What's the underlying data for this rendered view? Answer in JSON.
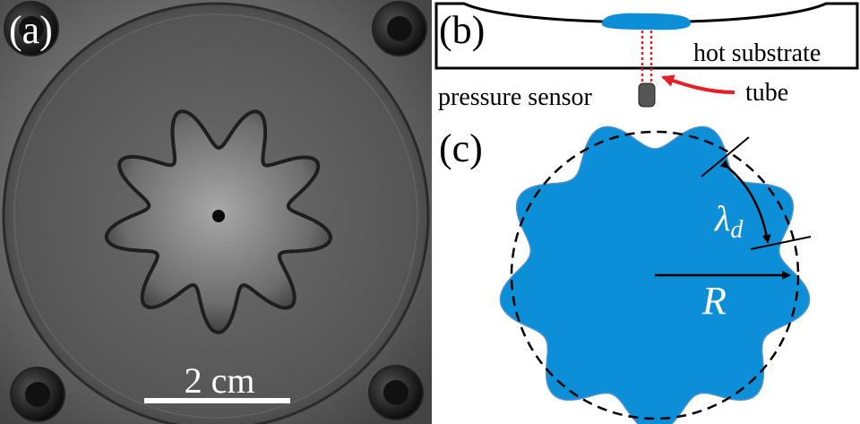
{
  "panel_a": {
    "label": "(a)",
    "scalebar_text": "2 cm"
  },
  "panel_b": {
    "label": "(b)",
    "substrate_label": "hot substrate",
    "sensor_label": "pressure sensor",
    "tube_label": "tube"
  },
  "panel_c": {
    "label": "(c)",
    "wavelength_symbol": "λ",
    "wavelength_subscript": "d",
    "radius_label": "R"
  },
  "colors": {
    "drop_fill": "#0c8fd6",
    "drop_edge": "#4a8fd0",
    "tube_red": "#e61e25",
    "arrow_red": "#e61e25",
    "metal_bg": "#3b3b3b"
  }
}
